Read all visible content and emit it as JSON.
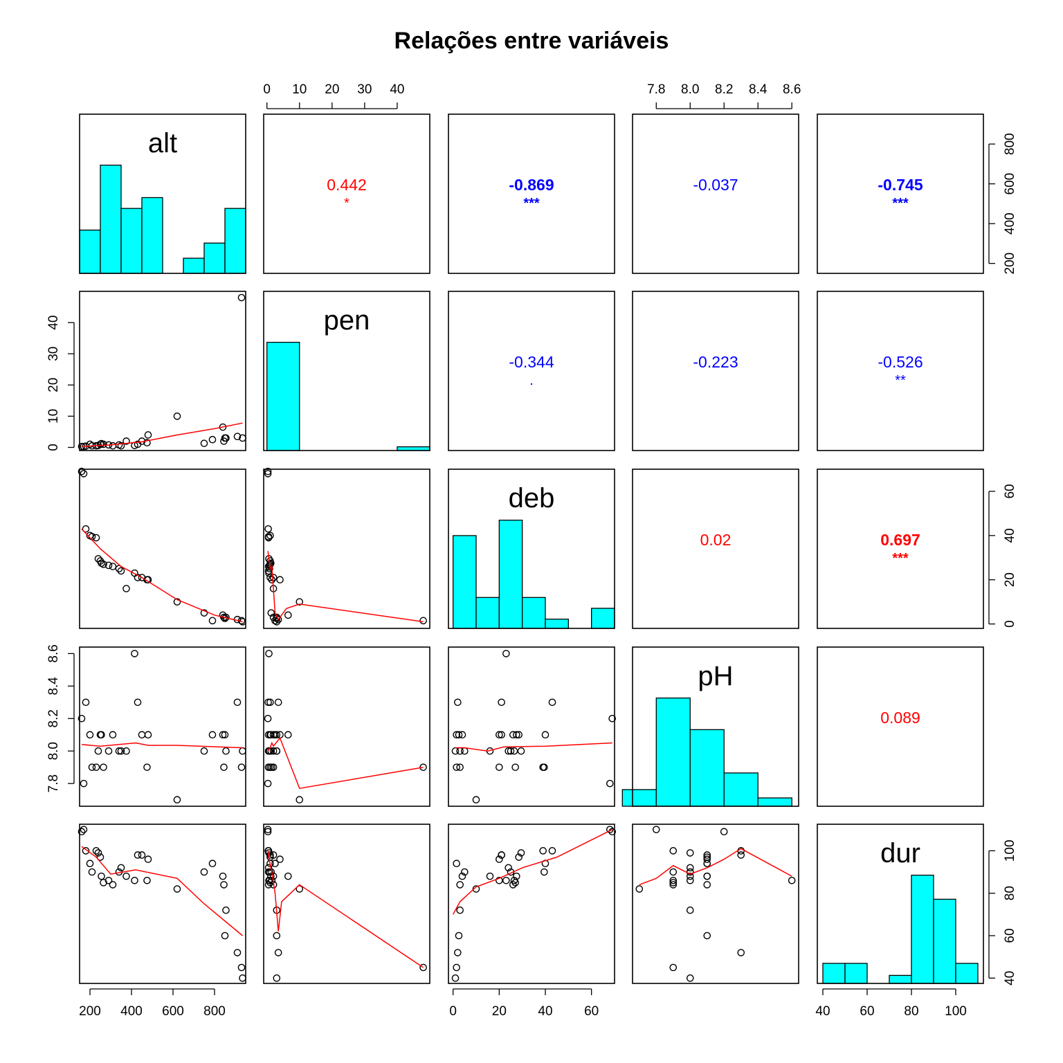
{
  "title": "Relações entre variáveis",
  "colors": {
    "histogram_fill": "#00ffff",
    "smooth_line": "#ff0000",
    "positive": "#ff0000",
    "negative": "#0000ff",
    "points": "#000000"
  },
  "chart_data": {
    "type": "scatter-matrix",
    "variables": [
      "alt",
      "pen",
      "deb",
      "pH",
      "dur"
    ],
    "ranges": {
      "alt": [
        150,
        950
      ],
      "pen": [
        -1,
        50
      ],
      "deb": [
        -2,
        70
      ],
      "pH": [
        7.66,
        8.64
      ],
      "dur": [
        37.5,
        112.5
      ]
    },
    "ticks": {
      "alt": [
        200,
        400,
        600,
        800
      ],
      "pen": [
        0,
        10,
        20,
        30,
        40
      ],
      "deb": [
        0,
        20,
        40,
        60
      ],
      "pH": [
        7.8,
        8.0,
        8.2,
        8.4,
        8.6
      ],
      "dur": [
        40,
        60,
        80,
        100
      ]
    },
    "tick_labels": {
      "alt": [
        "200",
        "400",
        "600",
        "800"
      ],
      "pen": [
        "0",
        "10",
        "20",
        "30",
        "40"
      ],
      "deb": [
        "0",
        "20",
        "40",
        "60"
      ],
      "pH": [
        "7.8",
        "8.0",
        "8.2",
        "8.4",
        "8.6"
      ],
      "dur": [
        "40",
        "60",
        "80",
        "100"
      ]
    },
    "histograms": {
      "alt": {
        "breaks": [
          150,
          250,
          350,
          450,
          550,
          650,
          750,
          850,
          950
        ],
        "counts": [
          2,
          5,
          3,
          3.5,
          0,
          0.7,
          1.4,
          3,
          2
        ]
      },
      "pen": {
        "breaks": [
          0,
          10,
          20,
          30,
          40,
          50
        ],
        "counts": [
          29,
          0,
          0,
          0,
          1
        ]
      },
      "deb": {
        "breaks": [
          0,
          10,
          20,
          30,
          40,
          50,
          60,
          70
        ],
        "counts": [
          6,
          2,
          7,
          2,
          0.6,
          0,
          1.3
        ]
      },
      "pH": {
        "breaks": [
          7.6,
          7.8,
          8.0,
          8.2,
          8.4,
          8.6
        ],
        "counts": [
          2,
          13,
          9.2,
          4,
          1
        ]
      },
      "dur": {
        "breaks": [
          40,
          50,
          60,
          70,
          80,
          90,
          100,
          110
        ],
        "counts": [
          1,
          1,
          0,
          0.4,
          5.4,
          4.2,
          1
        ]
      }
    },
    "observations": [
      {
        "alt": 160,
        "pen": 0.3,
        "deb": 69,
        "pH": 8.2,
        "dur": 109
      },
      {
        "alt": 170,
        "pen": 0.3,
        "deb": 68,
        "pH": 7.8,
        "dur": 110
      },
      {
        "alt": 180,
        "pen": 0.4,
        "deb": 43,
        "pH": 8.3,
        "dur": 100
      },
      {
        "alt": 200,
        "pen": 1.0,
        "deb": 40,
        "pH": 8.1,
        "dur": 94
      },
      {
        "alt": 210,
        "pen": 0.5,
        "deb": 39.5,
        "pH": 7.9,
        "dur": 90
      },
      {
        "alt": 230,
        "pen": 0.5,
        "deb": 39,
        "pH": 7.9,
        "dur": 100
      },
      {
        "alt": 240,
        "pen": 0.6,
        "deb": 29.5,
        "pH": 8.0,
        "dur": 99
      },
      {
        "alt": 250,
        "pen": 1.0,
        "deb": 28.5,
        "pH": 8.1,
        "dur": 97
      },
      {
        "alt": 255,
        "pen": 1.2,
        "deb": 27.5,
        "pH": 8.1,
        "dur": 88
      },
      {
        "alt": 265,
        "pen": 1.0,
        "deb": 27,
        "pH": 7.9,
        "dur": 85
      },
      {
        "alt": 290,
        "pen": 0.8,
        "deb": 26.5,
        "pH": 8.0,
        "dur": 86
      },
      {
        "alt": 310,
        "pen": 0.5,
        "deb": 26,
        "pH": 8.1,
        "dur": 84
      },
      {
        "alt": 340,
        "pen": 0.8,
        "deb": 25,
        "pH": 8.0,
        "dur": 90
      },
      {
        "alt": 350,
        "pen": 0.5,
        "deb": 24,
        "pH": 8.0,
        "dur": 92
      },
      {
        "alt": 375,
        "pen": 2.0,
        "deb": 16,
        "pH": 8.0,
        "dur": 88
      },
      {
        "alt": 415,
        "pen": 0.6,
        "deb": 23,
        "pH": 8.6,
        "dur": 86
      },
      {
        "alt": 430,
        "pen": 1.0,
        "deb": 21,
        "pH": 8.3,
        "dur": 98
      },
      {
        "alt": 450,
        "pen": 2.0,
        "deb": 21,
        "pH": 8.1,
        "dur": 98
      },
      {
        "alt": 475,
        "pen": 1.5,
        "deb": 20,
        "pH": 7.9,
        "dur": 86
      },
      {
        "alt": 480,
        "pen": 4.0,
        "deb": 20,
        "pH": 8.1,
        "dur": 96
      },
      {
        "alt": 620,
        "pen": 10.0,
        "deb": 10,
        "pH": 7.7,
        "dur": 82
      },
      {
        "alt": 750,
        "pen": 1.3,
        "deb": 5,
        "pH": 8.0,
        "dur": 90
      },
      {
        "alt": 790,
        "pen": 2.5,
        "deb": 1.5,
        "pH": 8.1,
        "dur": 94
      },
      {
        "alt": 840,
        "pen": 6.5,
        "deb": 4,
        "pH": 8.1,
        "dur": 88
      },
      {
        "alt": 845,
        "pen": 2.0,
        "deb": 3,
        "pH": 7.9,
        "dur": 84
      },
      {
        "alt": 850,
        "pen": 3.0,
        "deb": 2.5,
        "pH": 8.1,
        "dur": 60
      },
      {
        "alt": 855,
        "pen": 3.0,
        "deb": 3,
        "pH": 8.0,
        "dur": 72
      },
      {
        "alt": 910,
        "pen": 3.5,
        "deb": 2,
        "pH": 8.3,
        "dur": 52
      },
      {
        "alt": 930,
        "pen": 48.0,
        "deb": 1.5,
        "pH": 7.9,
        "dur": 45
      },
      {
        "alt": 935,
        "pen": 3.0,
        "deb": 1,
        "pH": 8.0,
        "dur": 40
      }
    ],
    "smoothers": [
      {
        "x": "alt",
        "y": "pen",
        "points": [
          [
            160,
            0.3
          ],
          [
            300,
            0.8
          ],
          [
            450,
            1.8
          ],
          [
            620,
            4
          ],
          [
            800,
            6
          ],
          [
            935,
            7.8
          ]
        ]
      },
      {
        "x": "alt",
        "y": "deb",
        "points": [
          [
            160,
            43
          ],
          [
            250,
            34
          ],
          [
            350,
            26
          ],
          [
            450,
            21
          ],
          [
            620,
            11
          ],
          [
            800,
            4
          ],
          [
            935,
            1
          ]
        ]
      },
      {
        "x": "pen",
        "y": "deb",
        "points": [
          [
            0.3,
            33
          ],
          [
            1,
            25
          ],
          [
            1.5,
            26
          ],
          [
            2.5,
            5
          ],
          [
            3.5,
            2
          ],
          [
            6,
            7
          ],
          [
            10,
            9
          ],
          [
            48,
            1
          ]
        ]
      },
      {
        "x": "alt",
        "y": "pH",
        "points": [
          [
            160,
            8.04
          ],
          [
            250,
            8.03
          ],
          [
            420,
            8.05
          ],
          [
            480,
            8.035
          ],
          [
            620,
            8.035
          ],
          [
            935,
            8.02
          ]
        ]
      },
      {
        "x": "pen",
        "y": "pH",
        "points": [
          [
            0.3,
            8.0
          ],
          [
            1,
            8.02
          ],
          [
            1.5,
            8.05
          ],
          [
            2,
            8.03
          ],
          [
            4,
            8.08
          ],
          [
            10,
            7.77
          ],
          [
            48,
            7.9
          ]
        ]
      },
      {
        "x": "deb",
        "y": "pH",
        "points": [
          [
            1,
            8.02
          ],
          [
            5,
            8.02
          ],
          [
            15,
            8.0
          ],
          [
            22,
            8.025
          ],
          [
            40,
            8.03
          ],
          [
            69,
            8.05
          ]
        ]
      },
      {
        "x": "alt",
        "y": "dur",
        "points": [
          [
            160,
            102
          ],
          [
            230,
            97
          ],
          [
            300,
            89
          ],
          [
            420,
            91
          ],
          [
            620,
            87
          ],
          [
            750,
            75
          ],
          [
            935,
            60
          ]
        ]
      },
      {
        "x": "pen",
        "y": "dur",
        "points": [
          [
            0.3,
            100
          ],
          [
            0.8,
            95
          ],
          [
            1.5,
            90
          ],
          [
            2.5,
            80
          ],
          [
            3.5,
            62
          ],
          [
            4.5,
            76
          ],
          [
            10,
            84
          ],
          [
            48,
            45
          ]
        ]
      },
      {
        "x": "deb",
        "y": "dur",
        "points": [
          [
            0,
            70
          ],
          [
            3,
            76
          ],
          [
            10,
            83
          ],
          [
            20,
            87
          ],
          [
            30,
            92
          ],
          [
            45,
            97
          ],
          [
            69,
            110
          ]
        ]
      },
      {
        "x": "pH",
        "y": "dur",
        "points": [
          [
            7.7,
            84
          ],
          [
            7.8,
            87
          ],
          [
            7.9,
            93
          ],
          [
            8.0,
            89
          ],
          [
            8.1,
            92
          ],
          [
            8.2,
            96
          ],
          [
            8.3,
            101
          ],
          [
            8.6,
            88
          ]
        ]
      }
    ],
    "correlations": [
      {
        "row": 0,
        "col": 1,
        "value": "0.442",
        "stars": "*",
        "sign": "positive",
        "bold": false
      },
      {
        "row": 0,
        "col": 2,
        "value": "-0.869",
        "stars": "***",
        "sign": "negative",
        "bold": true
      },
      {
        "row": 0,
        "col": 3,
        "value": "-0.037",
        "stars": "",
        "sign": "negative",
        "bold": false
      },
      {
        "row": 0,
        "col": 4,
        "value": "-0.745",
        "stars": "***",
        "sign": "negative",
        "bold": true
      },
      {
        "row": 1,
        "col": 2,
        "value": "-0.344",
        "stars": ".",
        "sign": "negative",
        "bold": false
      },
      {
        "row": 1,
        "col": 3,
        "value": "-0.223",
        "stars": "",
        "sign": "negative",
        "bold": false
      },
      {
        "row": 1,
        "col": 4,
        "value": "-0.526",
        "stars": "**",
        "sign": "negative",
        "bold": false
      },
      {
        "row": 2,
        "col": 3,
        "value": "0.02",
        "stars": "",
        "sign": "positive",
        "bold": false
      },
      {
        "row": 2,
        "col": 4,
        "value": "0.697",
        "stars": "***",
        "sign": "positive",
        "bold": true
      },
      {
        "row": 3,
        "col": 4,
        "value": "0.089",
        "stars": "",
        "sign": "positive",
        "bold": false
      }
    ]
  }
}
